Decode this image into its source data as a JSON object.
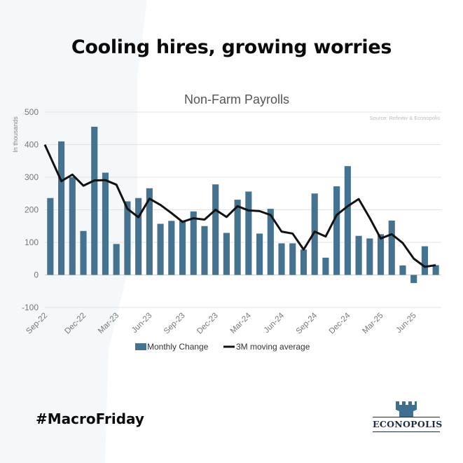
{
  "headline": "Cooling hires, growing worries",
  "hashtag": "#MacroFriday",
  "logo_text": "ECONOPOLIS",
  "colors": {
    "bar": "#44728f",
    "line": "#111111",
    "grid": "#e3e3e3",
    "axis_text": "#777777"
  },
  "chart_data": {
    "type": "bar",
    "title": "Non-Farm Payrolls",
    "source": "Source: Refinitiv & Econopolis",
    "ylabel": "In thousands",
    "xlabel": "",
    "ylim": [
      -100,
      500
    ],
    "yticks": [
      500,
      400,
      300,
      200,
      100,
      0,
      -100
    ],
    "grid": true,
    "legend_position": "bottom",
    "categories": [
      "Sep-22",
      "Oct-22",
      "Nov-22",
      "Dec-22",
      "Jan-23",
      "Feb-23",
      "Mar-23",
      "Apr-23",
      "May-23",
      "Jun-23",
      "Jul-23",
      "Aug-23",
      "Sep-23",
      "Oct-23",
      "Nov-23",
      "Dec-23",
      "Jan-24",
      "Feb-24",
      "Mar-24",
      "Apr-24",
      "May-24",
      "Jun-24",
      "Jul-24",
      "Aug-24",
      "Sep-24",
      "Oct-24",
      "Nov-24",
      "Dec-24",
      "Jan-25",
      "Feb-25",
      "Mar-25",
      "Apr-25",
      "May-25",
      "Jun-25",
      "Jul-25",
      "Aug-25"
    ],
    "xtick_labels": [
      "Sep-22",
      "Dec-22",
      "Mar-23",
      "Jun-23",
      "Sep-23",
      "Dec-23",
      "Mar-24",
      "Jun-24",
      "Sep-24",
      "Dec-24",
      "Mar-25",
      "Jun-25"
    ],
    "series": [
      {
        "name": "Monthly Change",
        "type": "bar",
        "values": [
          236,
          410,
          300,
          135,
          455,
          314,
          95,
          226,
          236,
          266,
          157,
          166,
          167,
          195,
          150,
          278,
          129,
          231,
          256,
          127,
          203,
          97,
          97,
          78,
          250,
          53,
          272,
          334,
          120,
          112,
          125,
          167,
          29,
          -25,
          88,
          30
        ]
      },
      {
        "name": "3M moving average",
        "type": "line",
        "values": [
          400,
          288,
          308,
          274,
          290,
          291,
          277,
          203,
          177,
          234,
          215,
          190,
          163,
          174,
          170,
          200,
          178,
          211,
          198,
          196,
          184,
          133,
          127,
          78,
          133,
          118,
          184,
          211,
          233,
          175,
          112,
          125,
          98,
          50,
          25,
          30
        ]
      }
    ]
  }
}
